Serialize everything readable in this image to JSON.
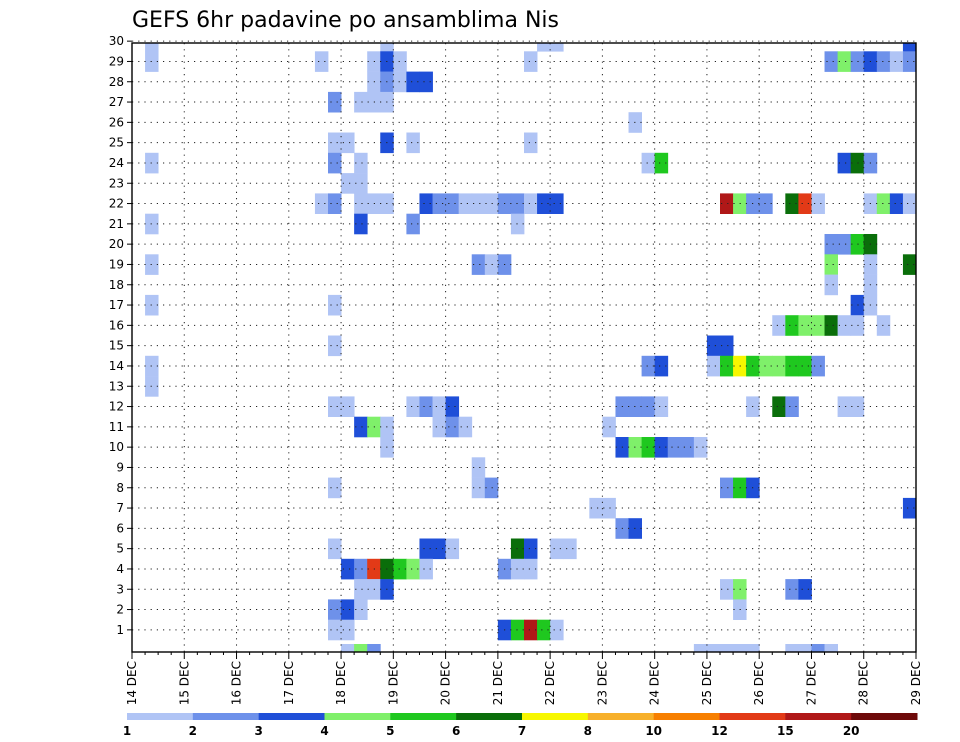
{
  "chart_data": {
    "type": "heatmap",
    "title": "GEFS 6hr padavine po ansamblima Nis",
    "x_ticks": [
      "14 DEC",
      "15 DEC",
      "16 DEC",
      "17 DEC",
      "18 DEC",
      "19 DEC",
      "20 DEC",
      "21 DEC",
      "22 DEC",
      "23 DEC",
      "24 DEC",
      "25 DEC",
      "26 DEC",
      "27 DEC",
      "28 DEC",
      "29 DEC"
    ],
    "y_ticks": [
      "1",
      "2",
      "3",
      "4",
      "5",
      "6",
      "7",
      "8",
      "9",
      "10",
      "11",
      "12",
      "13",
      "14",
      "15",
      "16",
      "17",
      "18",
      "19",
      "20",
      "21",
      "22",
      "23",
      "24",
      "25",
      "26",
      "27",
      "28",
      "29",
      "30"
    ],
    "grid": true,
    "colorbar": {
      "levels": [
        "1",
        "2",
        "3",
        "4",
        "5",
        "6",
        "7",
        "8",
        "10",
        "12",
        "15",
        "20"
      ],
      "colors": [
        "#b0c4f5",
        "#6e91ea",
        "#1f4fd8",
        "#7ff06a",
        "#1fc81f",
        "#0a6e0a",
        "#f7f700",
        "#f7b02a",
        "#f77f00",
        "#e23a17",
        "#b01818",
        "#6e0a0a"
      ]
    },
    "cells": [
      [
        30,
        0.25,
        1
      ],
      [
        30,
        4.75,
        1
      ],
      [
        30,
        7.75,
        1
      ],
      [
        30,
        8,
        1
      ],
      [
        30,
        14.75,
        3
      ],
      [
        29,
        0.25,
        1
      ],
      [
        29,
        3.5,
        1
      ],
      [
        29,
        4.5,
        1
      ],
      [
        29,
        4.75,
        3
      ],
      [
        29,
        5,
        1
      ],
      [
        29,
        7.5,
        1
      ],
      [
        29,
        13.25,
        2
      ],
      [
        29,
        13.5,
        4
      ],
      [
        29,
        13.75,
        2
      ],
      [
        29,
        14,
        3
      ],
      [
        29,
        14.25,
        2
      ],
      [
        29,
        14.5,
        1
      ],
      [
        29,
        14.75,
        2
      ],
      [
        28,
        4.5,
        1
      ],
      [
        28,
        4.75,
        2
      ],
      [
        28,
        5,
        1
      ],
      [
        28,
        5.25,
        3
      ],
      [
        28,
        5.5,
        3
      ],
      [
        27,
        3.75,
        2
      ],
      [
        27,
        4.25,
        1
      ],
      [
        27,
        4.5,
        1
      ],
      [
        27,
        4.75,
        1
      ],
      [
        26,
        9.5,
        1
      ],
      [
        25,
        3.75,
        1
      ],
      [
        25,
        4,
        1
      ],
      [
        25,
        4.75,
        3
      ],
      [
        25,
        5.25,
        1
      ],
      [
        25,
        7.5,
        1
      ],
      [
        24,
        0.25,
        1
      ],
      [
        24,
        3.75,
        2
      ],
      [
        24,
        4.25,
        1
      ],
      [
        24,
        9.75,
        1
      ],
      [
        24,
        10,
        5
      ],
      [
        24,
        13.5,
        3
      ],
      [
        24,
        13.75,
        6
      ],
      [
        24,
        14,
        2
      ],
      [
        23,
        4,
        1
      ],
      [
        23,
        4.25,
        1
      ],
      [
        22,
        3.5,
        1
      ],
      [
        22,
        3.75,
        2
      ],
      [
        22,
        4.25,
        1
      ],
      [
        22,
        4.5,
        1
      ],
      [
        22,
        4.75,
        1
      ],
      [
        22,
        5.5,
        3
      ],
      [
        22,
        5.75,
        2
      ],
      [
        22,
        6,
        2
      ],
      [
        22,
        6.25,
        1
      ],
      [
        22,
        6.5,
        1
      ],
      [
        22,
        6.75,
        1
      ],
      [
        22,
        7,
        2
      ],
      [
        22,
        7.25,
        2
      ],
      [
        22,
        7.5,
        1
      ],
      [
        22,
        7.75,
        3
      ],
      [
        22,
        8,
        3
      ],
      [
        22,
        11.25,
        11
      ],
      [
        22,
        11.5,
        4
      ],
      [
        22,
        11.75,
        2
      ],
      [
        22,
        12,
        2
      ],
      [
        22,
        12.5,
        6
      ],
      [
        22,
        12.75,
        10
      ],
      [
        22,
        13,
        1
      ],
      [
        22,
        14,
        1
      ],
      [
        22,
        14.25,
        4
      ],
      [
        22,
        14.5,
        3
      ],
      [
        22,
        14.75,
        1
      ],
      [
        21,
        0.25,
        1
      ],
      [
        21,
        4.25,
        3
      ],
      [
        21,
        5.25,
        2
      ],
      [
        21,
        7.25,
        1
      ],
      [
        20,
        13.25,
        2
      ],
      [
        20,
        13.5,
        2
      ],
      [
        20,
        13.75,
        5
      ],
      [
        20,
        14,
        6
      ],
      [
        19,
        0.25,
        1
      ],
      [
        19,
        6.5,
        2
      ],
      [
        19,
        6.75,
        1
      ],
      [
        19,
        7,
        2
      ],
      [
        19,
        13.25,
        4
      ],
      [
        19,
        14,
        1
      ],
      [
        19,
        14.75,
        6
      ],
      [
        18,
        13.25,
        1
      ],
      [
        18,
        14,
        1
      ],
      [
        17,
        0.25,
        1
      ],
      [
        17,
        3.75,
        1
      ],
      [
        17,
        13.75,
        3
      ],
      [
        17,
        14,
        1
      ],
      [
        16,
        12.25,
        1
      ],
      [
        16,
        12.5,
        5
      ],
      [
        16,
        12.75,
        4
      ],
      [
        16,
        13,
        4
      ],
      [
        16,
        13.25,
        6
      ],
      [
        16,
        13.5,
        1
      ],
      [
        16,
        13.75,
        1
      ],
      [
        16,
        14.25,
        1
      ],
      [
        15,
        3.75,
        1
      ],
      [
        15,
        11,
        3
      ],
      [
        15,
        11.25,
        3
      ],
      [
        14,
        0.25,
        1
      ],
      [
        14,
        9.75,
        2
      ],
      [
        14,
        10,
        3
      ],
      [
        14,
        11,
        1
      ],
      [
        14,
        11.25,
        5
      ],
      [
        14,
        11.5,
        7
      ],
      [
        14,
        11.75,
        5
      ],
      [
        14,
        12,
        4
      ],
      [
        14,
        12.25,
        4
      ],
      [
        14,
        12.5,
        5
      ],
      [
        14,
        12.75,
        5
      ],
      [
        14,
        13,
        2
      ],
      [
        13,
        0.25,
        1
      ],
      [
        12,
        3.75,
        1
      ],
      [
        12,
        4,
        1
      ],
      [
        12,
        5.25,
        1
      ],
      [
        12,
        5.5,
        2
      ],
      [
        12,
        5.75,
        1
      ],
      [
        12,
        6,
        3
      ],
      [
        12,
        9.25,
        2
      ],
      [
        12,
        9.5,
        2
      ],
      [
        12,
        9.75,
        2
      ],
      [
        12,
        10,
        1
      ],
      [
        12,
        11.75,
        1
      ],
      [
        12,
        12.25,
        6
      ],
      [
        12,
        12.5,
        2
      ],
      [
        12,
        13.5,
        1
      ],
      [
        12,
        13.75,
        1
      ],
      [
        11,
        4.25,
        3
      ],
      [
        11,
        4.5,
        4
      ],
      [
        11,
        4.75,
        1
      ],
      [
        11,
        5.75,
        1
      ],
      [
        11,
        6,
        2
      ],
      [
        11,
        6.25,
        1
      ],
      [
        11,
        9,
        1
      ],
      [
        10,
        4.75,
        1
      ],
      [
        10,
        9.25,
        3
      ],
      [
        10,
        9.5,
        4
      ],
      [
        10,
        9.75,
        5
      ],
      [
        10,
        10,
        3
      ],
      [
        10,
        10.25,
        2
      ],
      [
        10,
        10.5,
        2
      ],
      [
        10,
        10.75,
        1
      ],
      [
        9,
        6.5,
        1
      ],
      [
        8,
        3.75,
        1
      ],
      [
        8,
        6.5,
        1
      ],
      [
        8,
        6.75,
        2
      ],
      [
        8,
        11.25,
        2
      ],
      [
        8,
        11.5,
        5
      ],
      [
        8,
        11.75,
        3
      ],
      [
        7,
        8.75,
        1
      ],
      [
        7,
        9,
        1
      ],
      [
        7,
        14.75,
        3
      ],
      [
        6,
        9.25,
        2
      ],
      [
        6,
        9.5,
        3
      ],
      [
        5,
        3.75,
        1
      ],
      [
        5,
        5.5,
        3
      ],
      [
        5,
        5.75,
        3
      ],
      [
        5,
        6,
        1
      ],
      [
        5,
        7.25,
        6
      ],
      [
        5,
        7.5,
        3
      ],
      [
        5,
        8,
        1
      ],
      [
        5,
        8.25,
        1
      ],
      [
        4,
        4,
        3
      ],
      [
        4,
        4.25,
        2
      ],
      [
        4,
        4.5,
        10
      ],
      [
        4,
        4.75,
        6
      ],
      [
        4,
        5,
        5
      ],
      [
        4,
        5.25,
        4
      ],
      [
        4,
        5.5,
        1
      ],
      [
        4,
        7,
        2
      ],
      [
        4,
        7.25,
        1
      ],
      [
        4,
        7.5,
        1
      ],
      [
        3,
        4.25,
        1
      ],
      [
        3,
        4.5,
        1
      ],
      [
        3,
        4.75,
        3
      ],
      [
        3,
        11.25,
        1
      ],
      [
        3,
        11.5,
        4
      ],
      [
        3,
        12.5,
        2
      ],
      [
        3,
        12.75,
        3
      ],
      [
        2,
        3.75,
        2
      ],
      [
        2,
        4,
        3
      ],
      [
        2,
        4.25,
        1
      ],
      [
        2,
        11.5,
        1
      ],
      [
        1,
        3.75,
        1
      ],
      [
        1,
        4,
        1
      ],
      [
        1,
        7,
        3
      ],
      [
        1,
        7.25,
        5
      ],
      [
        1,
        7.5,
        11
      ],
      [
        1,
        7.75,
        5
      ],
      [
        1,
        8,
        1
      ],
      [
        0,
        4,
        1
      ],
      [
        0,
        4.25,
        4
      ],
      [
        0,
        4.5,
        2
      ],
      [
        0,
        10.75,
        1
      ],
      [
        0,
        11,
        1
      ],
      [
        0,
        11.25,
        1
      ],
      [
        0,
        11.5,
        1
      ],
      [
        0,
        11.75,
        1
      ],
      [
        0,
        12.5,
        1
      ],
      [
        0,
        12.75,
        1
      ],
      [
        0,
        13,
        2
      ],
      [
        0,
        13.25,
        1
      ]
    ]
  }
}
